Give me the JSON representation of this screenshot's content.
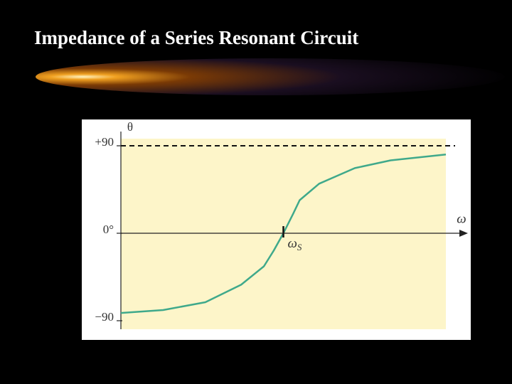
{
  "chart_data": {
    "type": "line",
    "title": "Impedance of a Series Resonant Circuit",
    "y_label": "θ",
    "x_label": "ω",
    "x": [
      0,
      13,
      26,
      37,
      44,
      47,
      50,
      53,
      55,
      61,
      72,
      83,
      100
    ],
    "series": [
      {
        "color": "#3fa98b",
        "values": [
          -82,
          -79,
          -71,
          -53,
          -34,
          -18,
          0,
          20,
          34,
          51,
          67,
          75,
          81
        ]
      }
    ],
    "xlim": [
      0,
      100
    ],
    "ylim": [
      -90,
      90
    ],
    "yticks": [
      {
        "value": 90,
        "label": "+90"
      },
      {
        "value": 0,
        "label": "0°"
      },
      {
        "value": -90,
        "label": "−90"
      }
    ],
    "marker": {
      "x": 50,
      "label": "ω",
      "subscript": "S"
    }
  }
}
